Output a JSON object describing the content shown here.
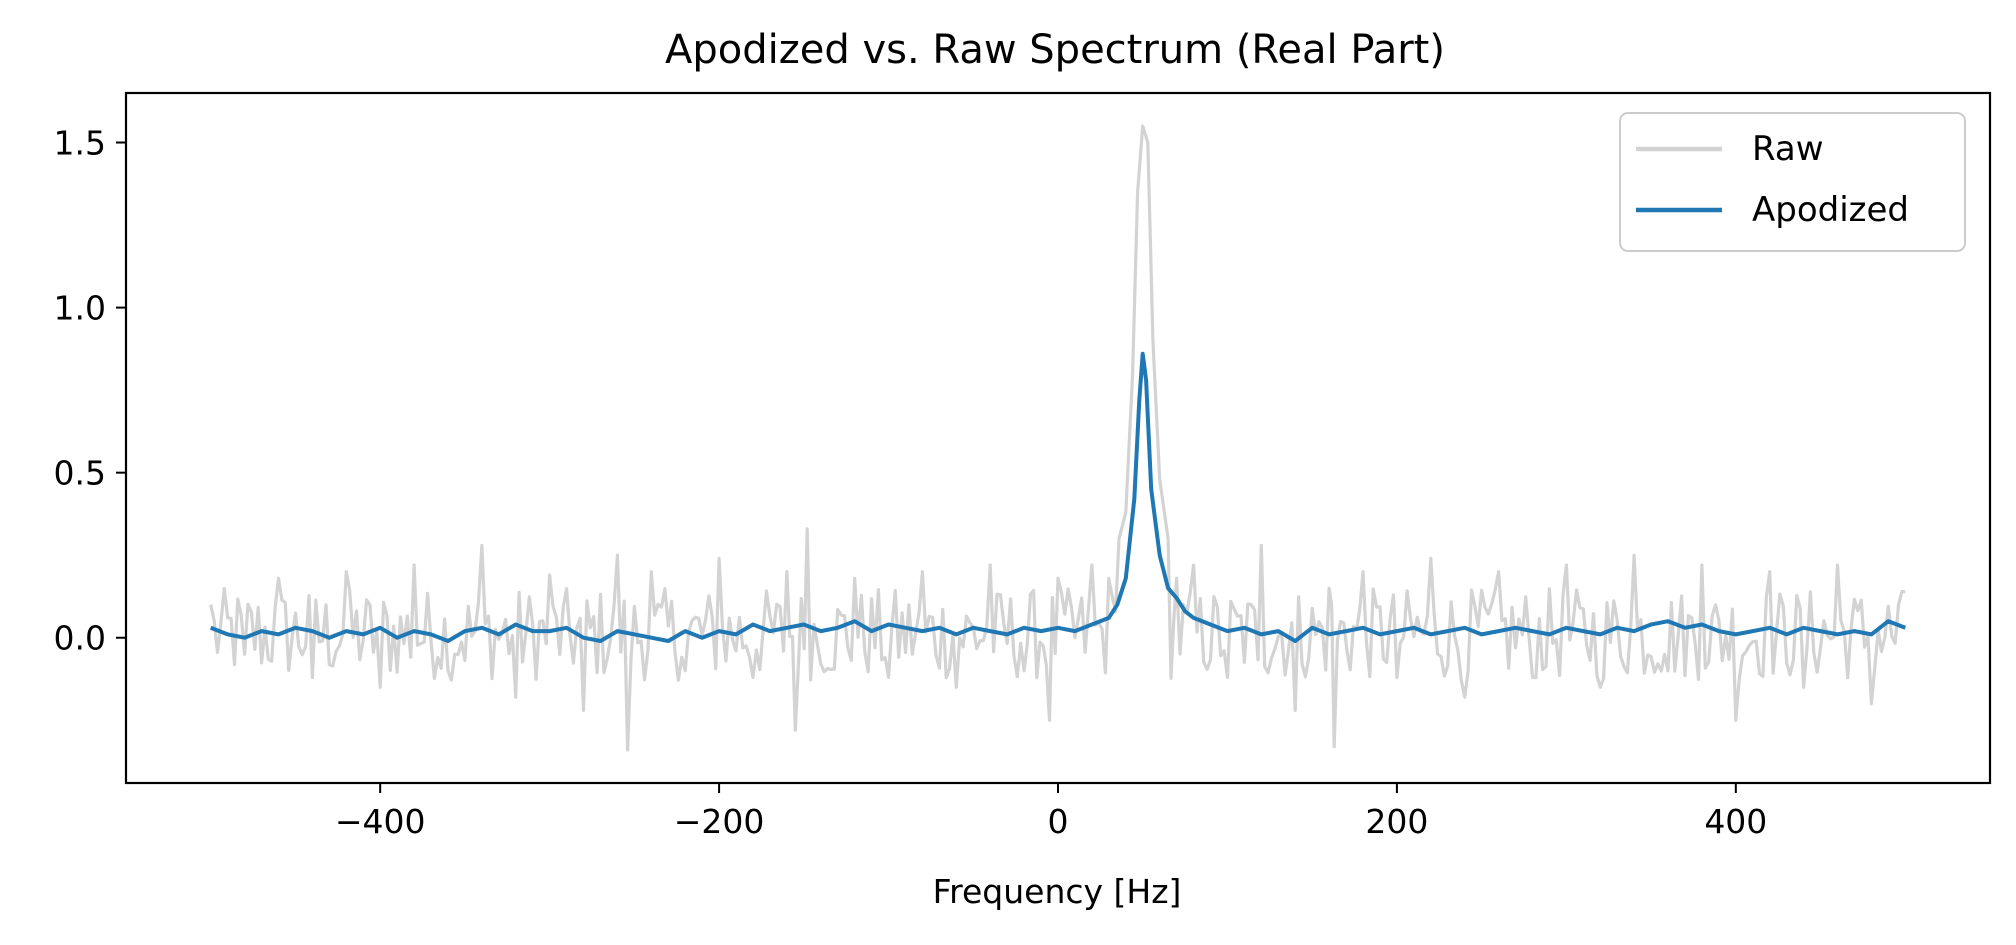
{
  "chart_data": {
    "type": "line",
    "title": "Apodized vs. Raw Spectrum (Real Part)",
    "xlabel": "Frequency [Hz]",
    "ylabel": "",
    "xlim": [
      -550,
      550
    ],
    "ylim": [
      -0.44,
      1.65
    ],
    "xticks": [
      -400,
      -200,
      0,
      200,
      400
    ],
    "xtick_labels": [
      "−400",
      "−200",
      "0",
      "200",
      "400"
    ],
    "yticks": [
      0.0,
      0.5,
      1.0,
      1.5
    ],
    "ytick_labels": [
      "0.0",
      "0.5",
      "1.0",
      "1.5"
    ],
    "grid": false,
    "legend_position": "upper right",
    "series": [
      {
        "name": "Raw",
        "color": "#d3d3d3",
        "peak": {
          "x": 50,
          "y": 1.55
        },
        "x": [
          -500,
          -480,
          -460,
          -440,
          -420,
          -400,
          -380,
          -360,
          -340,
          -320,
          -300,
          -280,
          -260,
          -254,
          -240,
          -220,
          -200,
          -180,
          -160,
          -155,
          -148,
          -140,
          -120,
          -100,
          -80,
          -60,
          -40,
          -20,
          -5,
          0,
          20,
          30,
          40,
          44,
          47,
          50,
          53,
          56,
          60,
          65,
          70,
          80,
          100,
          120,
          140,
          160,
          163,
          180,
          200,
          220,
          240,
          260,
          280,
          300,
          320,
          340,
          360,
          380,
          400,
          420,
          440,
          460,
          480,
          500
        ],
        "y": [
          0.1,
          -0.05,
          0.18,
          -0.12,
          0.2,
          -0.15,
          0.22,
          -0.1,
          0.28,
          -0.18,
          0.19,
          -0.22,
          0.25,
          -0.34,
          0.2,
          -0.1,
          0.24,
          -0.12,
          0.2,
          -0.28,
          0.33,
          -0.08,
          0.18,
          -0.12,
          0.2,
          -0.15,
          0.22,
          -0.1,
          -0.25,
          0.18,
          0.22,
          0.18,
          0.38,
          0.8,
          1.35,
          1.55,
          1.5,
          0.9,
          0.48,
          0.3,
          0.18,
          0.22,
          -0.12,
          0.28,
          -0.22,
          0.15,
          -0.33,
          0.2,
          -0.12,
          0.24,
          -0.18,
          0.2,
          -0.12,
          0.22,
          -0.15,
          0.25,
          -0.1,
          0.22,
          -0.25,
          0.2,
          -0.15,
          0.22,
          -0.2,
          0.14
        ]
      },
      {
        "name": "Apodized",
        "color": "#1f77b4",
        "peak": {
          "x": 50,
          "y": 0.86
        },
        "x": [
          -500,
          -490,
          -480,
          -470,
          -460,
          -450,
          -440,
          -430,
          -420,
          -410,
          -400,
          -390,
          -380,
          -370,
          -360,
          -350,
          -340,
          -330,
          -320,
          -310,
          -300,
          -290,
          -280,
          -270,
          -260,
          -250,
          -240,
          -230,
          -220,
          -210,
          -200,
          -190,
          -180,
          -170,
          -160,
          -150,
          -140,
          -130,
          -120,
          -110,
          -100,
          -90,
          -80,
          -70,
          -60,
          -50,
          -40,
          -30,
          -20,
          -10,
          0,
          10,
          20,
          30,
          35,
          40,
          45,
          48,
          50,
          52,
          55,
          60,
          65,
          70,
          75,
          80,
          90,
          100,
          110,
          120,
          130,
          140,
          150,
          160,
          170,
          180,
          190,
          200,
          210,
          220,
          230,
          240,
          250,
          260,
          270,
          280,
          290,
          300,
          310,
          320,
          330,
          340,
          350,
          360,
          370,
          380,
          390,
          400,
          410,
          420,
          430,
          440,
          450,
          460,
          470,
          480,
          490,
          500
        ],
        "y": [
          0.03,
          0.01,
          0.0,
          0.02,
          0.01,
          0.03,
          0.02,
          0.0,
          0.02,
          0.01,
          0.03,
          0.0,
          0.02,
          0.01,
          -0.01,
          0.02,
          0.03,
          0.01,
          0.04,
          0.02,
          0.02,
          0.03,
          0.0,
          -0.01,
          0.02,
          0.01,
          0.0,
          -0.01,
          0.02,
          0.0,
          0.02,
          0.01,
          0.04,
          0.02,
          0.03,
          0.04,
          0.02,
          0.03,
          0.05,
          0.02,
          0.04,
          0.03,
          0.02,
          0.03,
          0.01,
          0.03,
          0.02,
          0.01,
          0.03,
          0.02,
          0.03,
          0.02,
          0.04,
          0.06,
          0.1,
          0.18,
          0.42,
          0.72,
          0.86,
          0.78,
          0.45,
          0.25,
          0.15,
          0.12,
          0.08,
          0.06,
          0.04,
          0.02,
          0.03,
          0.01,
          0.02,
          -0.01,
          0.03,
          0.01,
          0.02,
          0.03,
          0.01,
          0.02,
          0.03,
          0.01,
          0.02,
          0.03,
          0.01,
          0.02,
          0.03,
          0.02,
          0.01,
          0.03,
          0.02,
          0.01,
          0.03,
          0.02,
          0.04,
          0.05,
          0.03,
          0.04,
          0.02,
          0.01,
          0.02,
          0.03,
          0.01,
          0.03,
          0.02,
          0.01,
          0.02,
          0.01,
          0.05,
          0.03
        ]
      }
    ]
  }
}
